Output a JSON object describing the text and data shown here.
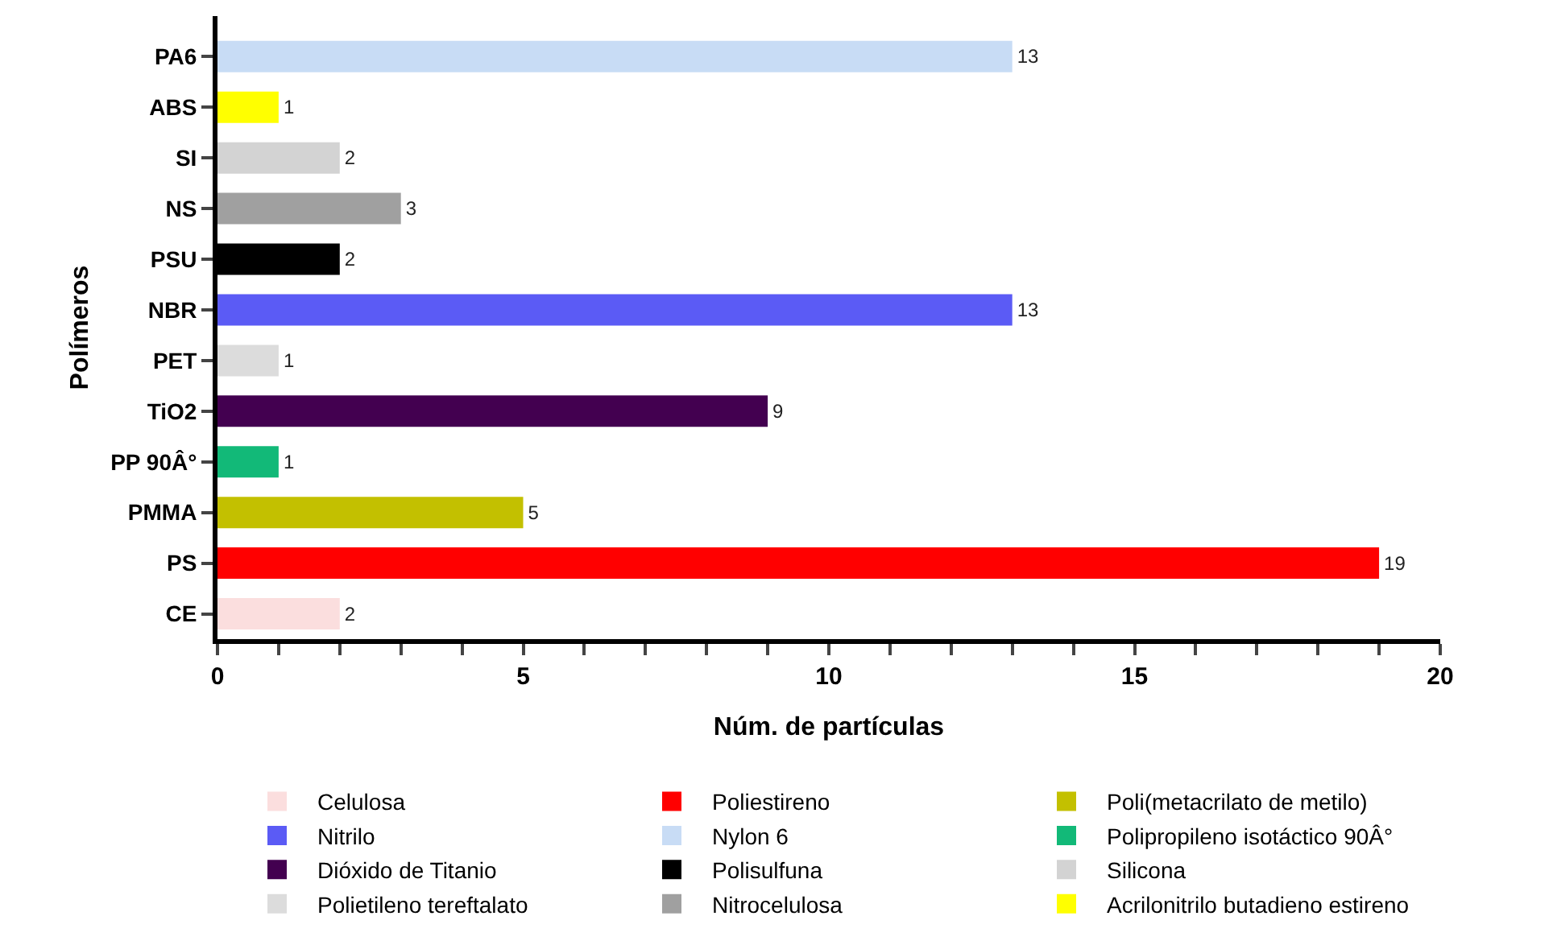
{
  "chart_data": {
    "type": "bar",
    "orientation": "horizontal",
    "xlabel": "Núm. de partículas",
    "ylabel": "Polímeros",
    "categories": [
      "PA6",
      "ABS",
      "SI",
      "NS",
      "PSU",
      "NBR",
      "PET",
      "TiO2",
      "PP 90Â°",
      "PMMA",
      "PS",
      "CE"
    ],
    "series": [
      {
        "name": "Celulosa",
        "color": "#fbdede",
        "values": [
          null,
          null,
          null,
          null,
          null,
          null,
          null,
          null,
          null,
          null,
          null,
          2
        ]
      },
      {
        "name": "Poliestireno",
        "color": "#ff0000",
        "values": [
          null,
          null,
          null,
          null,
          null,
          null,
          null,
          null,
          null,
          null,
          19,
          null
        ]
      },
      {
        "name": "Poli(metacrilato de metilo)",
        "color": "#c3c000",
        "values": [
          null,
          null,
          null,
          null,
          null,
          null,
          null,
          null,
          null,
          5,
          null,
          null
        ]
      },
      {
        "name": "Nitrilo",
        "color": "#5b5bf5",
        "values": [
          null,
          null,
          null,
          null,
          null,
          13,
          null,
          null,
          null,
          null,
          null,
          null
        ]
      },
      {
        "name": "Nylon 6",
        "color": "#c8dcf5",
        "values": [
          13,
          null,
          null,
          null,
          null,
          null,
          null,
          null,
          null,
          null,
          null,
          null
        ]
      },
      {
        "name": "Polipropileno isotáctico 90Â°",
        "color": "#12b978",
        "values": [
          null,
          null,
          null,
          null,
          null,
          null,
          null,
          null,
          1,
          null,
          null,
          null
        ]
      },
      {
        "name": "Dióxido de Titanio",
        "color": "#430050",
        "values": [
          null,
          null,
          null,
          null,
          null,
          null,
          null,
          9,
          null,
          null,
          null,
          null
        ]
      },
      {
        "name": "Polisulfuna",
        "color": "#000000",
        "values": [
          null,
          null,
          null,
          null,
          2,
          null,
          null,
          null,
          null,
          null,
          null,
          null
        ]
      },
      {
        "name": "Silicona",
        "color": "#d3d3d3",
        "values": [
          null,
          null,
          2,
          null,
          null,
          null,
          null,
          null,
          null,
          null,
          null,
          null
        ]
      },
      {
        "name": "Polietileno tereftalato",
        "color": "#dcdcdc",
        "values": [
          null,
          null,
          null,
          null,
          null,
          null,
          1,
          null,
          null,
          null,
          null,
          null
        ]
      },
      {
        "name": "Nitrocelulosa",
        "color": "#a0a0a0",
        "values": [
          null,
          null,
          null,
          3,
          null,
          null,
          null,
          null,
          null,
          null,
          null,
          null
        ]
      },
      {
        "name": "Acrilonitrilo butadieno estireno",
        "color": "#ffff00",
        "values": [
          null,
          1,
          null,
          null,
          null,
          null,
          null,
          null,
          null,
          null,
          null,
          null
        ]
      }
    ],
    "xlim": [
      0,
      20
    ],
    "xticks": [
      0,
      {
        "value": 1,
        "label": null
      },
      {
        "value": 2,
        "label": null
      },
      {
        "value": 3,
        "label": null
      },
      {
        "value": 4,
        "label": null
      },
      5,
      {
        "value": 6,
        "label": null
      },
      {
        "value": 7,
        "label": null
      },
      {
        "value": 8,
        "label": null
      },
      {
        "value": 9,
        "label": null
      },
      10,
      {
        "value": 11,
        "label": null
      },
      {
        "value": 12,
        "label": null
      },
      {
        "value": 13,
        "label": null
      },
      {
        "value": 14,
        "label": null
      },
      15,
      {
        "value": 16,
        "label": null
      },
      {
        "value": 17,
        "label": null
      },
      {
        "value": 18,
        "label": null
      },
      {
        "value": 19,
        "label": null
      },
      20
    ],
    "data_labels": true,
    "grid": false,
    "legend": "bottom"
  }
}
